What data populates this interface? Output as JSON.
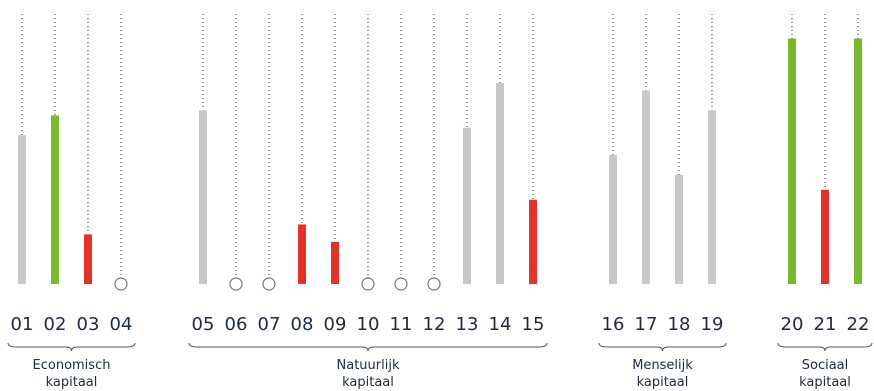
{
  "colors": {
    "grey": "#c8c8c8",
    "green": "#7ab92f",
    "red": "#e3322a",
    "guide": "#333333",
    "text": "#1d2a4a",
    "brace": "#555555",
    "marker_stroke": "#777777"
  },
  "chart_data": {
    "type": "bar",
    "ylim": [
      0,
      100
    ],
    "grid": false,
    "legend": "none",
    "categories": [
      "01",
      "02",
      "03",
      "04",
      "05",
      "06",
      "07",
      "08",
      "09",
      "10",
      "11",
      "12",
      "13",
      "14",
      "15",
      "16",
      "17",
      "18",
      "19",
      "20",
      "21",
      "22"
    ],
    "values": [
      60,
      68,
      20,
      0,
      70,
      0,
      0,
      24,
      17,
      0,
      0,
      0,
      63,
      81,
      34,
      52,
      78,
      44,
      70,
      99,
      38,
      99
    ],
    "status": [
      "grey",
      "green",
      "red",
      "none",
      "grey",
      "none",
      "none",
      "red",
      "red",
      "none",
      "none",
      "none",
      "grey",
      "grey",
      "red",
      "grey",
      "grey",
      "grey",
      "grey",
      "green",
      "red",
      "green"
    ],
    "groups": [
      {
        "label_line1": "Economisch",
        "label_line2": "kapitaal",
        "members": [
          "01",
          "02",
          "03",
          "04"
        ]
      },
      {
        "label_line1": "Natuurlijk",
        "label_line2": "kapitaal",
        "members": [
          "05",
          "06",
          "07",
          "08",
          "09",
          "10",
          "11",
          "12",
          "13",
          "14",
          "15"
        ]
      },
      {
        "label_line1": "Menselijk",
        "label_line2": "kapitaal",
        "members": [
          "16",
          "17",
          "18",
          "19"
        ]
      },
      {
        "label_line1": "Sociaal",
        "label_line2": "kapitaal",
        "members": [
          "20",
          "21",
          "22"
        ]
      }
    ]
  }
}
